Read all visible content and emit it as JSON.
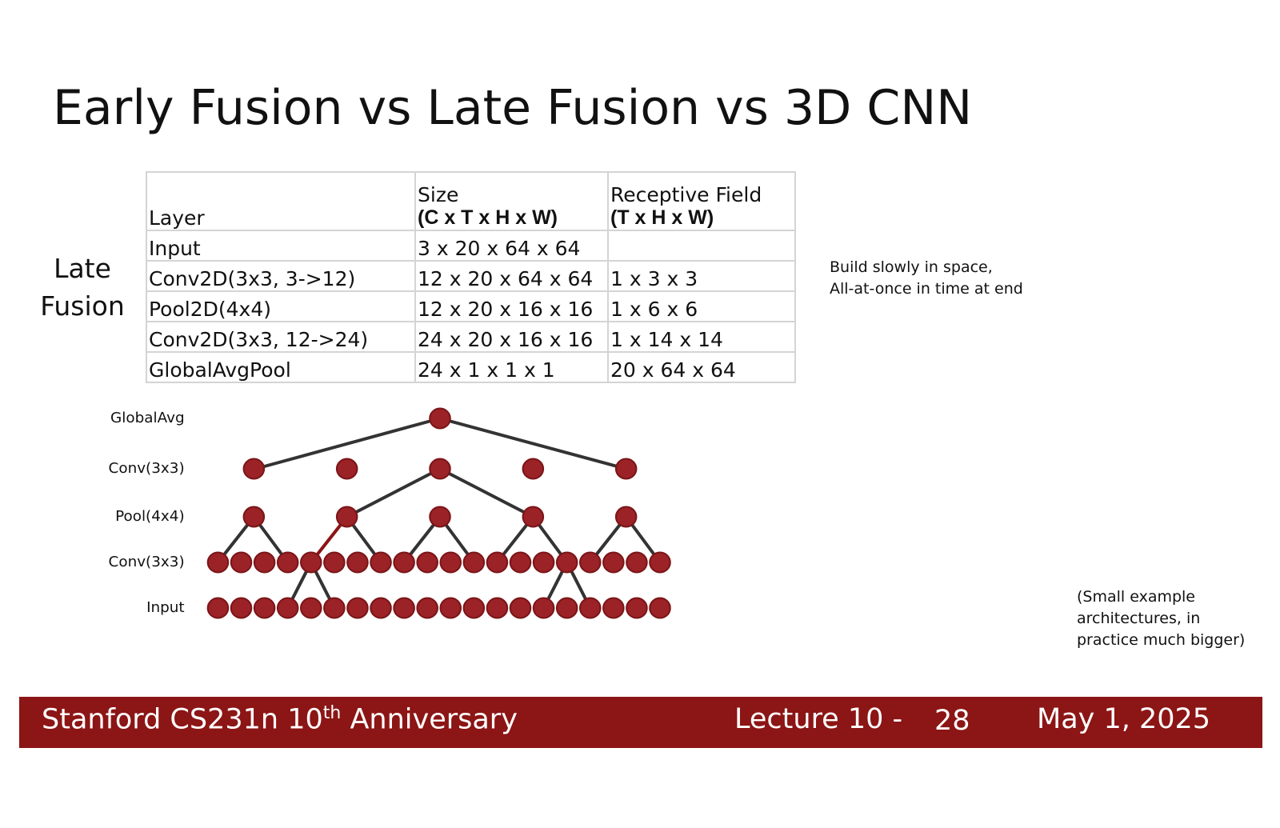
{
  "title": "Early Fusion vs Late Fusion vs 3D CNN",
  "side_label": "Late Fusion",
  "table": {
    "header": [
      [
        "Layer"
      ],
      [
        "Size",
        "(C x T x H x W)"
      ],
      [
        "Receptive Field",
        "(T x H x W)"
      ]
    ],
    "rows": [
      [
        "Input",
        "3 x 20 x 64 x 64"
      ],
      [
        "Conv2D(3x3, 3->12)",
        "12 x 20 x 64 x 64",
        "1 x 3 x 3"
      ],
      [
        "Pool2D(4x4)",
        "12 x 20 x 16 x 16",
        "1 x 6 x 6"
      ],
      [
        "Conv2D(3x3, 12->24)",
        "24 x 20 x 16 x 16",
        "1 x 14 x 14"
      ],
      [
        "GlobalAvgPool",
        "24 x 1 x 1 x 1",
        "20 x 64 x 64"
      ]
    ]
  },
  "note": [
    "Build slowly in space,",
    "All-at-once in time at end"
  ],
  "diagram": {
    "levels": [
      "GlobalAvg",
      "Conv(3x3)",
      "Pool(4x4)",
      "Conv(3x3)",
      "Input"
    ]
  },
  "aside": [
    "(Small example",
    "architectures, in",
    "practice much bigger)"
  ],
  "footer": {
    "course": "Stanford CS231n 10",
    "sup": "th",
    "course_end": "Anniversary",
    "lecture": "Lecture 10 -",
    "page": "28",
    "date": "May 1, 2025"
  }
}
